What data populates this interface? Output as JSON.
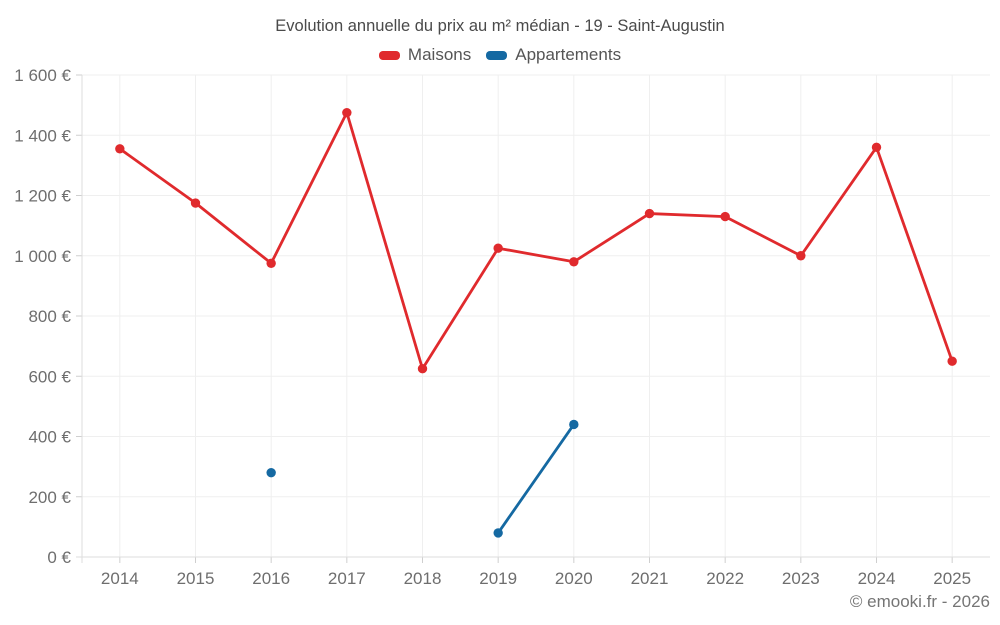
{
  "title": "Evolution annuelle du prix au m² médian - 19 - Saint-Augustin",
  "footer": "© emooki.fr - 2026",
  "colors": {
    "grid": "#efefef",
    "axis": "#dedede",
    "tick": "#cfcfcf",
    "axis_text": "#6e6e6e",
    "title_text": "#4a4a4a",
    "maisons_red": "#e02a2d",
    "appartements_blue": "#1569a2"
  },
  "chart_data": {
    "type": "line",
    "title": "Evolution annuelle du prix au m² médian - 19 - Saint-Augustin",
    "categories": [
      "2014",
      "2015",
      "2016",
      "2017",
      "2018",
      "2019",
      "2020",
      "2021",
      "2022",
      "2023",
      "2024",
      "2025"
    ],
    "series": [
      {
        "name": "Maisons",
        "color": "#e02a2d",
        "values": [
          1355,
          1175,
          975,
          1475,
          625,
          1025,
          980,
          1140,
          1130,
          1000,
          1360,
          650
        ]
      },
      {
        "name": "Appartements",
        "color": "#1569a2",
        "values": [
          null,
          null,
          280,
          null,
          null,
          80,
          440,
          null,
          null,
          null,
          null,
          null
        ]
      }
    ],
    "xlabel": "",
    "ylabel": "",
    "ylim": [
      0,
      1600
    ],
    "ytick_step": 200,
    "ytick_labels": [
      "0 €",
      "200 €",
      "400 €",
      "600 €",
      "800 €",
      "1 000 €",
      "1 200 €",
      "1 400 €",
      "1 600 €"
    ],
    "grid": true,
    "legend_position": "top",
    "annotation": "© emooki.fr - 2026"
  }
}
